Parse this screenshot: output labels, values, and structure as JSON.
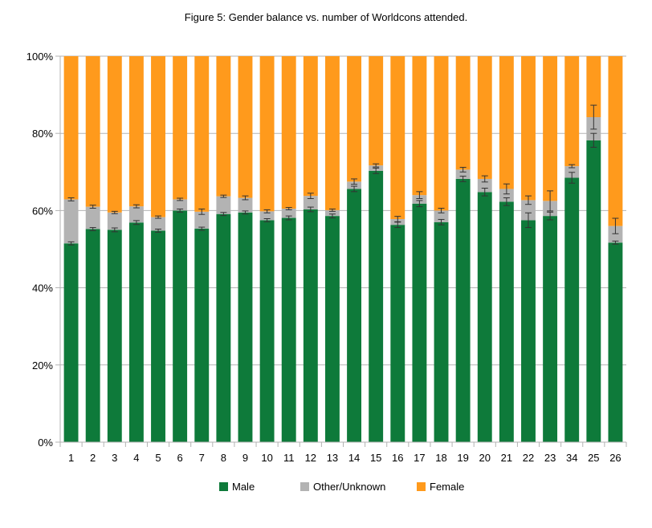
{
  "chart_data": {
    "type": "bar",
    "stacked": true,
    "title": "Figure 5: Gender balance vs. number of Worldcons attended.",
    "xlabel": "",
    "ylabel": "",
    "ylim": [
      0,
      100
    ],
    "y_ticks": [
      "0%",
      "20%",
      "40%",
      "60%",
      "80%",
      "100%"
    ],
    "grid": "horizontal",
    "legend_position": "bottom",
    "categories": [
      "1",
      "2",
      "3",
      "4",
      "5",
      "6",
      "7",
      "8",
      "9",
      "10",
      "11",
      "12",
      "13",
      "14",
      "15",
      "16",
      "17",
      "18",
      "19",
      "20",
      "21",
      "22",
      "23",
      "34",
      "25",
      "26"
    ],
    "series": [
      {
        "name": "Male",
        "color": "#0e7a3a",
        "values": [
          51.5,
          55.2,
          55.0,
          56.9,
          54.8,
          60.0,
          55.3,
          59.1,
          59.5,
          57.5,
          58.1,
          60.3,
          58.6,
          65.6,
          70.3,
          56.3,
          61.8,
          57.0,
          68.2,
          64.8,
          62.3,
          57.5,
          58.6,
          68.5,
          78.2,
          51.7
        ]
      },
      {
        "name": "Other/Unknown",
        "color": "#b3b3b3",
        "values": [
          11.4,
          5.8,
          4.5,
          4.2,
          3.5,
          2.9,
          4.4,
          4.6,
          3.8,
          2.3,
          2.4,
          3.5,
          1.5,
          1.9,
          1.4,
          1.5,
          2.2,
          3.0,
          2.4,
          3.4,
          3.3,
          5.2,
          3.9,
          3.0,
          6.0,
          4.3
        ]
      },
      {
        "name": "Female",
        "color": "#ff9a1c",
        "values": [
          37.1,
          39.0,
          40.5,
          38.9,
          41.7,
          37.1,
          40.3,
          36.3,
          36.7,
          40.2,
          39.5,
          36.2,
          39.9,
          32.5,
          28.3,
          42.2,
          36.0,
          40.0,
          29.4,
          31.8,
          34.4,
          37.3,
          37.5,
          28.5,
          15.8,
          44.0
        ]
      }
    ],
    "error_margins": {
      "Male": [
        0.4,
        0.4,
        0.5,
        0.5,
        0.4,
        0.4,
        0.4,
        0.4,
        0.4,
        0.4,
        0.5,
        0.6,
        0.5,
        0.7,
        0.7,
        0.7,
        0.8,
        0.7,
        0.7,
        1.0,
        1.0,
        1.9,
        1.0,
        1.4,
        1.8,
        0.4
      ],
      "Other/Unknown": [
        0.4,
        0.4,
        0.3,
        0.4,
        0.3,
        0.3,
        0.7,
        0.3,
        0.5,
        0.4,
        0.3,
        0.7,
        0.3,
        0.7,
        0.4,
        0.7,
        0.9,
        0.6,
        0.6,
        0.8,
        1.3,
        1.1,
        2.6,
        0.4,
        3.1,
        2.0
      ]
    },
    "legend": [
      "Male",
      "Other/Unknown",
      "Female"
    ]
  }
}
